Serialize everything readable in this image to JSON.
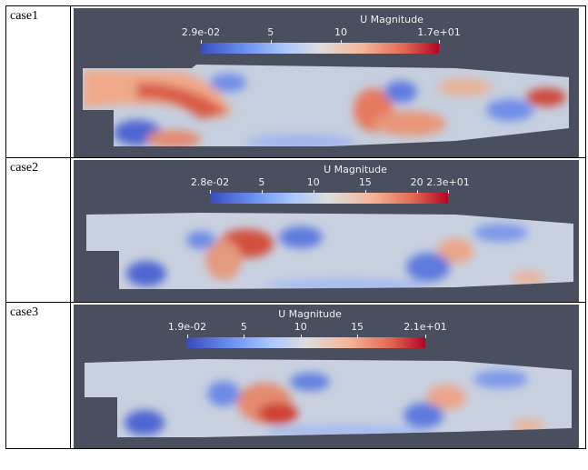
{
  "cases": [
    {
      "label": "case1",
      "colorbar": {
        "title": "U Magnitude",
        "min_label": "2.9e-02",
        "max_label": "1.7e+01",
        "ticks": [
          {
            "text": "2.9e-02",
            "frac": 0.0
          },
          {
            "text": "5",
            "frac": 0.293
          },
          {
            "text": "10",
            "frac": 0.588
          },
          {
            "text": "1.7e+01",
            "frac": 1.0
          }
        ]
      }
    },
    {
      "label": "case2",
      "colorbar": {
        "title": "U Magnitude",
        "min_label": "2.8e-02",
        "max_label": "2.3e+01",
        "ticks": [
          {
            "text": "2.8e-02",
            "frac": 0.0
          },
          {
            "text": "5",
            "frac": 0.217
          },
          {
            "text": "10",
            "frac": 0.434
          },
          {
            "text": "15",
            "frac": 0.652
          },
          {
            "text": "20",
            "frac": 0.869
          },
          {
            "text": "2.3e+01",
            "frac": 1.0
          }
        ]
      }
    },
    {
      "label": "case3",
      "colorbar": {
        "title": "U Magnitude",
        "min_label": "1.9e-02",
        "max_label": "2.1e+01",
        "ticks": [
          {
            "text": "1.9e-02",
            "frac": 0.0
          },
          {
            "text": "5",
            "frac": 0.238
          },
          {
            "text": "10",
            "frac": 0.476
          },
          {
            "text": "15",
            "frac": 0.714
          },
          {
            "text": "2.1e+01",
            "frac": 1.0
          }
        ]
      }
    }
  ],
  "colors": {
    "background": "#4a4f60",
    "field_base": "#c9d2e2",
    "low": "#3b4cc0",
    "high": "#b40426"
  }
}
